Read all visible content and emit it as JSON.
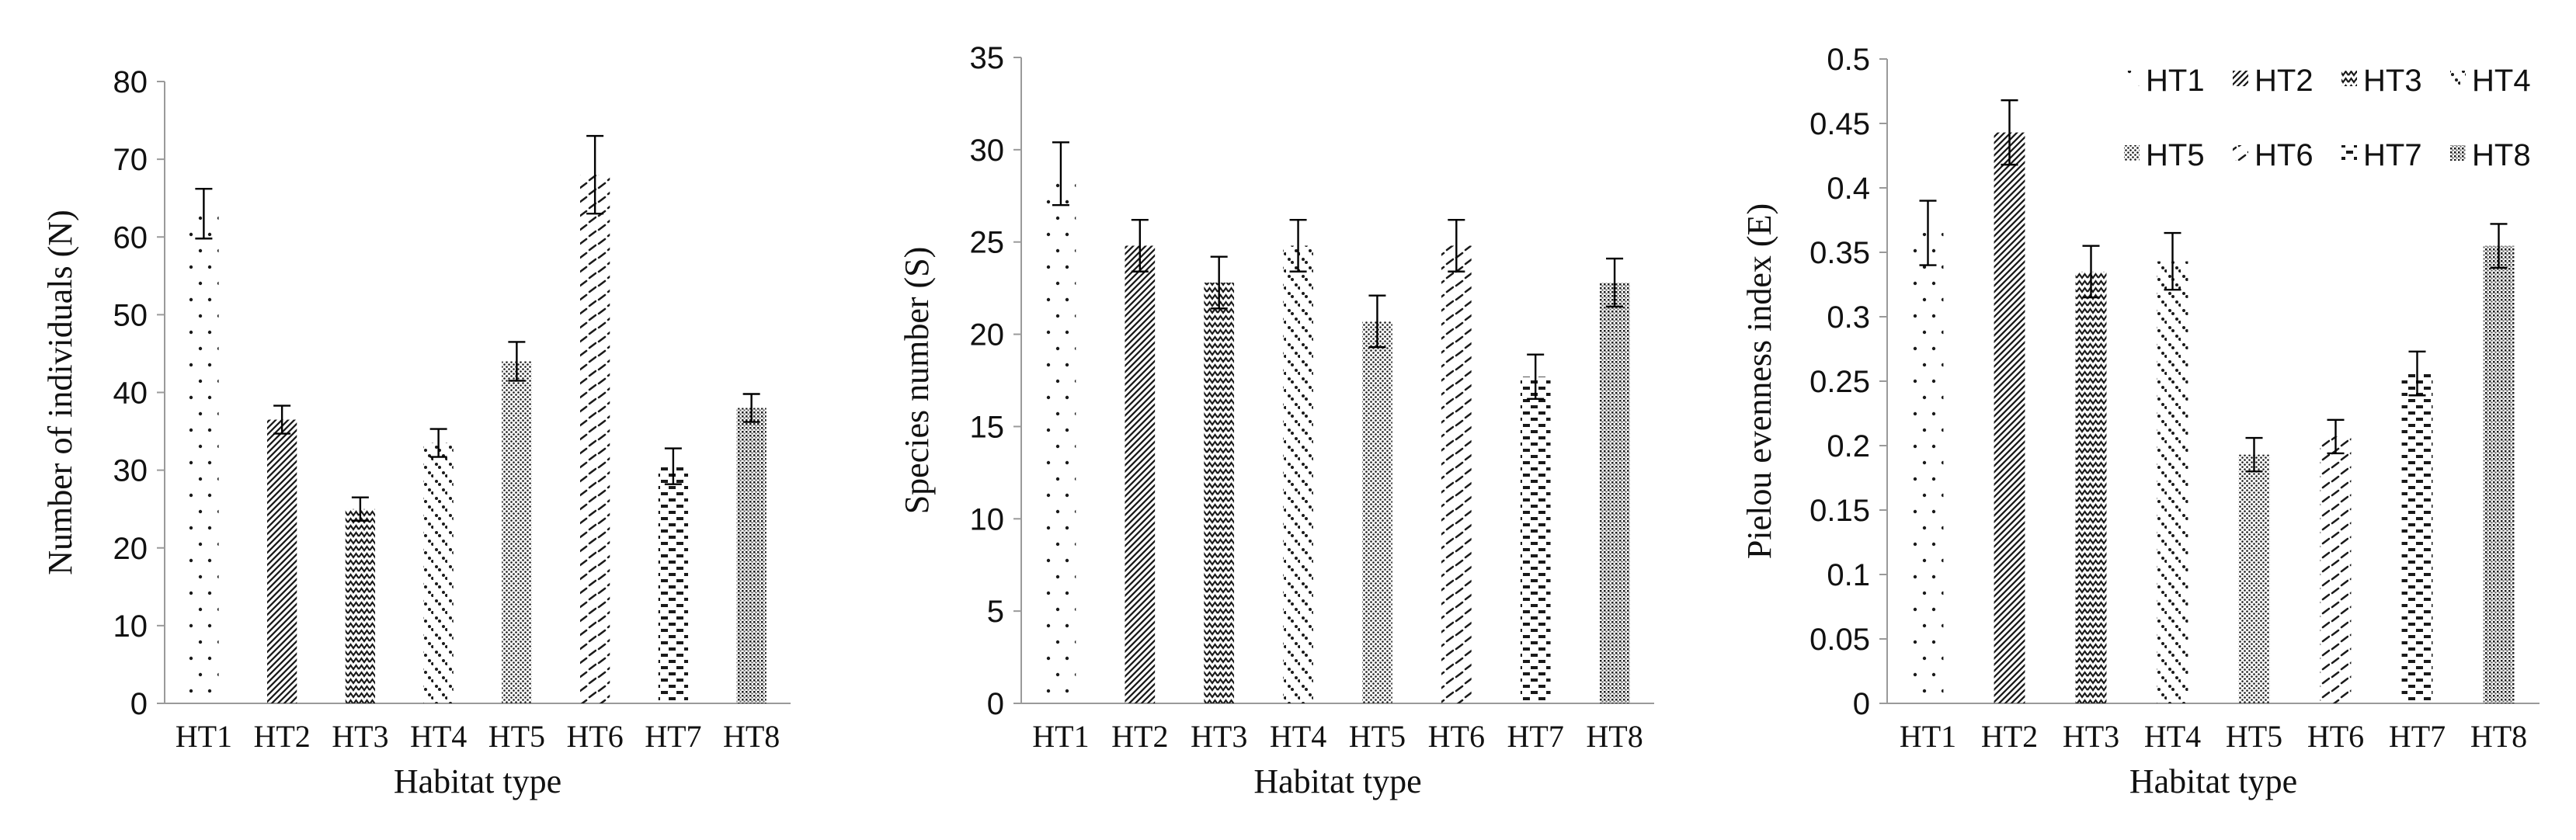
{
  "colors": {
    "axis": "#9a9a9a",
    "bar_ink": "#1a1a1a",
    "error_bar": "#000000",
    "background": "#ffffff"
  },
  "legend": {
    "entries": [
      "HT1",
      "HT2",
      "HT3",
      "HT4",
      "HT5",
      "HT6",
      "HT7",
      "HT8"
    ],
    "placement": "top-right of third panel",
    "patterns": [
      "sparse-dots",
      "diagonal-hatch",
      "zigzag",
      "diagonal-dots",
      "dense-dots",
      "wave-dashes",
      "horizontal-dashes",
      "dense-grid"
    ]
  },
  "chart_data": [
    {
      "type": "bar",
      "categories": [
        "HT1",
        "HT2",
        "HT3",
        "HT4",
        "HT5",
        "HT6",
        "HT7",
        "HT8"
      ],
      "values": [
        63,
        36.5,
        25,
        33.5,
        44,
        68,
        30.5,
        38
      ],
      "errors": [
        3.2,
        1.8,
        1.5,
        1.8,
        2.5,
        5,
        2.3,
        1.8
      ],
      "xlabel": "Habitat type",
      "ylabel": "Number of individuals (N)",
      "ylim": [
        0,
        80
      ],
      "yticks": [
        "0",
        "10",
        "20",
        "30",
        "40",
        "50",
        "60",
        "70",
        "80"
      ],
      "grid": false
    },
    {
      "type": "bar",
      "categories": [
        "HT1",
        "HT2",
        "HT3",
        "HT4",
        "HT5",
        "HT6",
        "HT7",
        "HT8"
      ],
      "values": [
        28.7,
        24.8,
        22.8,
        24.8,
        20.7,
        24.8,
        17.7,
        22.8
      ],
      "errors": [
        1.7,
        1.4,
        1.4,
        1.4,
        1.4,
        1.4,
        1.2,
        1.3
      ],
      "xlabel": "Habitat type",
      "ylabel": "Species number (S)",
      "ylim": [
        0,
        35
      ],
      "yticks": [
        "0",
        "5",
        "10",
        "15",
        "20",
        "25",
        "30",
        "35"
      ],
      "grid": false
    },
    {
      "type": "bar",
      "categories": [
        "HT1",
        "HT2",
        "HT3",
        "HT4",
        "HT5",
        "HT6",
        "HT7",
        "HT8"
      ],
      "values": [
        0.365,
        0.443,
        0.335,
        0.343,
        0.193,
        0.207,
        0.256,
        0.355
      ],
      "errors": [
        0.025,
        0.025,
        0.02,
        0.022,
        0.013,
        0.013,
        0.017,
        0.017
      ],
      "xlabel": "Habitat type",
      "ylabel": "Pielou evenness index (E)",
      "ylim": [
        0,
        0.5
      ],
      "yticks": [
        "0",
        "0.05",
        "0.1",
        "0.15",
        "0.2",
        "0.25",
        "0.3",
        "0.35",
        "0.4",
        "0.45",
        "0.5"
      ],
      "grid": false
    }
  ]
}
